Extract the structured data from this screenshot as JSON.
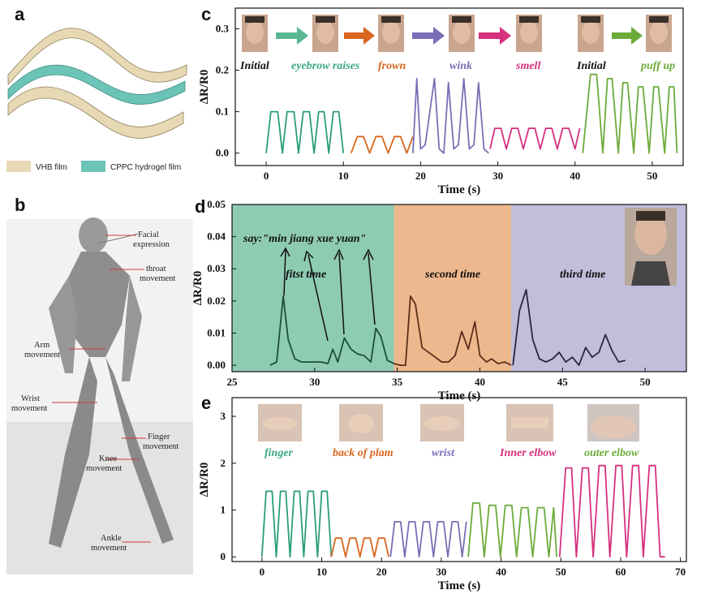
{
  "panels": {
    "a": "a",
    "b": "b",
    "c": "c",
    "d": "d",
    "e": "e"
  },
  "legend_a": [
    {
      "label": "VHB film",
      "color": "#e8d9b5"
    },
    {
      "label": "CPPC hydrogel film",
      "color": "#6cc3b7"
    }
  ],
  "body_labels": [
    {
      "text": [
        "Facial",
        "expression"
      ]
    },
    {
      "text": [
        "throat",
        "movement"
      ]
    },
    {
      "text": [
        "Arm",
        "movement"
      ]
    },
    {
      "text": [
        "Wrist",
        "movement"
      ]
    },
    {
      "text": [
        "Finger",
        "movement"
      ]
    },
    {
      "text": [
        "Knee",
        "movement"
      ]
    },
    {
      "text": [
        "Ankle",
        "movement"
      ]
    }
  ],
  "chart_data": [
    {
      "id": "c",
      "type": "line",
      "xlabel": "Time (s)",
      "ylabel": "ΔR/R0",
      "xlim": [
        -4,
        54
      ],
      "ylim": [
        -0.03,
        0.35
      ],
      "xticks": [
        0,
        10,
        20,
        30,
        40,
        50
      ],
      "yticks": [
        0.0,
        0.1,
        0.2,
        0.3
      ],
      "annotations": [
        {
          "text": "Initial",
          "color": "#111111"
        },
        {
          "text": "eyebrow raises",
          "color": "#3aa985"
        },
        {
          "text": "frown",
          "color": "#d9661e"
        },
        {
          "text": "wink",
          "color": "#7a6fb6"
        },
        {
          "text": "smell",
          "color": "#d6307e"
        },
        {
          "text": "Initial",
          "color": "#111111"
        },
        {
          "text": "puff up",
          "color": "#6cab3a"
        }
      ],
      "series": [
        {
          "color": "#2a9d78",
          "x": [
            0,
            0.6,
            1.5,
            2.1,
            2.7,
            3.6,
            4.2,
            4.8,
            5.6,
            6.2,
            6.8,
            7.5,
            8.1,
            8.7,
            9.4,
            10
          ],
          "y": [
            0,
            0.1,
            0.1,
            0,
            0.1,
            0.1,
            0,
            0.1,
            0.1,
            0,
            0.1,
            0.1,
            0,
            0.1,
            0.1,
            0
          ]
        },
        {
          "color": "#d9661e",
          "x": [
            11,
            11.8,
            12.6,
            13.4,
            14.2,
            15,
            15.8,
            16.6,
            17.4,
            18.2,
            19
          ],
          "y": [
            0,
            0.04,
            0.04,
            0,
            0.04,
            0.04,
            0,
            0.04,
            0.04,
            0,
            0.04
          ]
        },
        {
          "color": "#7a6fb6",
          "x": [
            19,
            19.5,
            20,
            20.6,
            21.8,
            22.4,
            23,
            23.6,
            24.3,
            24.9,
            25.6,
            26.3,
            26.9,
            27.5,
            28.2,
            28.8
          ],
          "y": [
            0,
            0.18,
            0.01,
            0.02,
            0.18,
            0.01,
            0,
            0.17,
            0.01,
            0.02,
            0.18,
            0.01,
            0.02,
            0.17,
            0.01,
            0
          ]
        },
        {
          "color": "#d6307e",
          "x": [
            29,
            29.6,
            30.4,
            31.1,
            31.8,
            32.6,
            33.3,
            34,
            34.8,
            35.5,
            36.2,
            37,
            37.7,
            38.4,
            39.2,
            40,
            40.6
          ],
          "y": [
            0.01,
            0.06,
            0.06,
            0.01,
            0.06,
            0.06,
            0.01,
            0.06,
            0.06,
            0.01,
            0.06,
            0.06,
            0.01,
            0.06,
            0.06,
            0.01,
            0.06
          ]
        },
        {
          "color": "#6cab3a",
          "x": [
            41,
            42,
            42.8,
            43.6,
            44.2,
            44.8,
            45.6,
            46.2,
            46.8,
            47.6,
            48.2,
            48.8,
            49.6,
            50.2,
            50.8,
            51.6,
            52.2,
            52.8,
            53.2
          ],
          "y": [
            0,
            0.19,
            0.19,
            0,
            0.18,
            0.18,
            0,
            0.17,
            0.17,
            0,
            0.16,
            0.16,
            0,
            0.16,
            0.16,
            0,
            0.16,
            0.16,
            0
          ]
        }
      ]
    },
    {
      "id": "d",
      "type": "line",
      "xlabel": "Time (s)",
      "ylabel": "ΔR/R0",
      "xlim": [
        25,
        52.5
      ],
      "ylim": [
        -0.002,
        0.05
      ],
      "xticks": [
        25,
        30,
        35,
        40,
        45,
        50
      ],
      "yticks": [
        "0.00",
        "0.01",
        "0.02",
        "0.03",
        "0.04",
        "0.05"
      ],
      "regions": [
        {
          "from": 25,
          "to": 34.8,
          "color": "#8ecbb3",
          "label": "fitst time"
        },
        {
          "from": 34.8,
          "to": 41.9,
          "color": "#edb88d",
          "label": "second time"
        },
        {
          "from": 41.9,
          "to": 52.5,
          "color": "#c1bedb",
          "label": "third time"
        }
      ],
      "quote": "say:\"min jiang xue yuan\"",
      "series": [
        {
          "color": "#1e4f33",
          "x": [
            27.3,
            27.7,
            28.1,
            28.4,
            28.8,
            29.2,
            29.6,
            30,
            30.4,
            30.8,
            31.1,
            31.4,
            31.8,
            32.2,
            32.6,
            33,
            33.4,
            33.7,
            34,
            34.4,
            34.8
          ],
          "y": [
            0.0,
            0.001,
            0.0215,
            0.008,
            0.002,
            0.001,
            0.001,
            0.001,
            0.001,
            0.0005,
            0.005,
            0.001,
            0.0085,
            0.005,
            0.0035,
            0.003,
            0.001,
            0.0115,
            0.009,
            0.0015,
            0.0005
          ]
        },
        {
          "color": "#5a2e1a",
          "x": [
            34.8,
            35.2,
            35.5,
            35.8,
            36.1,
            36.5,
            36.9,
            37.3,
            37.7,
            38.1,
            38.5,
            38.9,
            39.3,
            39.7,
            40,
            40.4,
            40.7,
            41.1,
            41.5,
            41.9
          ],
          "y": [
            0.0005,
            0.0,
            0.0,
            0.0215,
            0.019,
            0.0055,
            0.004,
            0.0025,
            0.001,
            0.001,
            0.003,
            0.0105,
            0.005,
            0.0135,
            0.003,
            0.001,
            0.002,
            0.0005,
            0.001,
            0.0
          ]
        },
        {
          "color": "#2a2540",
          "x": [
            42,
            42.4,
            42.8,
            43.2,
            43.6,
            44,
            44.4,
            44.8,
            45.2,
            45.6,
            46,
            46.4,
            46.8,
            47.2,
            47.6,
            48,
            48.4,
            48.8
          ],
          "y": [
            0.0,
            0.017,
            0.0235,
            0.008,
            0.002,
            0.001,
            0.002,
            0.004,
            0.001,
            0.0025,
            0.0,
            0.0055,
            0.0025,
            0.004,
            0.0095,
            0.0045,
            0.001,
            0.0015
          ]
        }
      ]
    },
    {
      "id": "e",
      "type": "line",
      "xlabel": "Time (s)",
      "ylabel": "ΔR/R0",
      "xlim": [
        -5,
        71
      ],
      "ylim": [
        -0.1,
        3.4
      ],
      "xticks": [
        0,
        10,
        20,
        30,
        40,
        50,
        60,
        70
      ],
      "yticks": [
        0,
        1,
        2,
        3
      ],
      "annotations": [
        {
          "text": "finger",
          "color": "#3aa985"
        },
        {
          "text": "back of plam",
          "color": "#d9661e"
        },
        {
          "text": "wrist",
          "color": "#7a6fb6"
        },
        {
          "text": "Inner elbow",
          "color": "#d6307e"
        },
        {
          "text": "outer elbow",
          "color": "#6cab3a"
        }
      ],
      "series": [
        {
          "color": "#2a9d78",
          "x": [
            0,
            0.7,
            1.7,
            2.4,
            3.1,
            4,
            4.7,
            5.4,
            6.3,
            7,
            7.7,
            8.6,
            9.3,
            10,
            10.9,
            11.6
          ],
          "y": [
            0,
            1.4,
            1.4,
            0,
            1.4,
            1.4,
            0,
            1.4,
            1.4,
            0,
            1.4,
            1.4,
            0,
            1.4,
            1.4,
            0
          ]
        },
        {
          "color": "#d9661e",
          "x": [
            11.6,
            12.3,
            13.3,
            14,
            14.7,
            15.7,
            16.4,
            17.1,
            18.1,
            18.8,
            19.5,
            20.5,
            21.2
          ],
          "y": [
            0,
            0.4,
            0.4,
            0,
            0.4,
            0.4,
            0,
            0.4,
            0.4,
            0,
            0.4,
            0.4,
            0
          ]
        },
        {
          "color": "#7a6fb6",
          "x": [
            21.5,
            22.2,
            23.2,
            23.9,
            24.6,
            25.6,
            26.3,
            27,
            28,
            28.7,
            29.4,
            30.4,
            31.1,
            31.8,
            32.8,
            33.5,
            34.2
          ],
          "y": [
            0,
            0.75,
            0.75,
            0,
            0.75,
            0.75,
            0,
            0.75,
            0.75,
            0,
            0.75,
            0.75,
            0,
            0.75,
            0.75,
            0,
            0.75
          ]
        },
        {
          "color": "#6cab3a",
          "x": [
            34.5,
            35.3,
            36.4,
            37.2,
            38,
            39.1,
            39.9,
            40.7,
            41.8,
            42.6,
            43.4,
            44.5,
            45.3,
            46.1,
            47.2,
            48,
            48.8,
            49.3
          ],
          "y": [
            0,
            1.15,
            1.15,
            0,
            1.1,
            1.1,
            0,
            1.1,
            1.1,
            0,
            1.05,
            1.05,
            0,
            1.05,
            1.05,
            0,
            1.05,
            0
          ]
        },
        {
          "color": "#d6307e",
          "x": [
            49.8,
            50.8,
            51.8,
            52.6,
            53.6,
            54.6,
            55.4,
            56.4,
            57.4,
            58.2,
            59.2,
            60.2,
            61,
            62,
            63,
            63.8,
            64.8,
            65.8,
            66.6,
            67.4
          ],
          "y": [
            0,
            1.9,
            1.9,
            0,
            1.9,
            1.9,
            0,
            1.95,
            1.95,
            0,
            1.95,
            1.95,
            0,
            1.95,
            1.95,
            0,
            1.95,
            1.95,
            0,
            0
          ]
        }
      ]
    }
  ]
}
